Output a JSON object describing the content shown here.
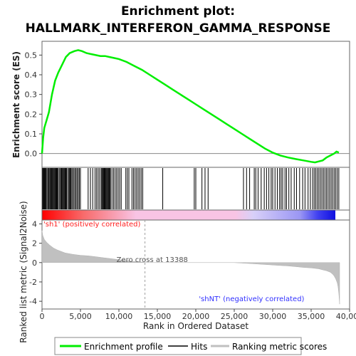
{
  "chart_data": {
    "type": "line",
    "title_line1": "Enrichment plot:",
    "title_line2": "HALLMARK_INTERFERON_GAMMA_RESPONSE",
    "ylabel_top": "Enrichment score (ES)",
    "ylabel_bottom": "Ranked list metric (Signal2Noise)",
    "xlabel": "Rank in Ordered Dataset",
    "xlim": [
      0,
      40000
    ],
    "x_ticks": [
      "0",
      "5,000",
      "10,000",
      "15,000",
      "20,000",
      "25,000",
      "30,000",
      "35,000",
      "40,000"
    ],
    "x_tick_values": [
      0,
      5000,
      10000,
      15000,
      20000,
      25000,
      30000,
      35000,
      40000
    ],
    "es_ylim": [
      -0.07,
      0.57
    ],
    "es_ticks": [
      "0.0",
      "0.1",
      "0.2",
      "0.3",
      "0.4",
      "0.5"
    ],
    "es_tick_values": [
      0.0,
      0.1,
      0.2,
      0.3,
      0.4,
      0.5
    ],
    "metric_ylim": [
      -4.8,
      4.4
    ],
    "metric_ticks": [
      "-4",
      "-2",
      "0",
      "2",
      "4"
    ],
    "metric_tick_values": [
      -4,
      -2,
      0,
      2,
      4
    ],
    "enrichment_profile": {
      "x": [
        0,
        150,
        300,
        600,
        900,
        1300,
        1700,
        2100,
        2600,
        3100,
        3600,
        4200,
        4700,
        5200,
        5800,
        6400,
        7000,
        7600,
        8200,
        8800,
        9400,
        10000,
        11000,
        12000,
        13000,
        14000,
        15000,
        16000,
        17000,
        18000,
        19000,
        20000,
        21000,
        22000,
        23000,
        24000,
        25000,
        26000,
        27000,
        28000,
        29000,
        30000,
        31000,
        32000,
        33000,
        34000,
        35000,
        35500,
        36000,
        36500,
        37000,
        37500,
        38000,
        38300,
        38600
      ],
      "y": [
        0.0,
        0.08,
        0.13,
        0.17,
        0.21,
        0.3,
        0.37,
        0.41,
        0.45,
        0.49,
        0.51,
        0.52,
        0.525,
        0.52,
        0.51,
        0.505,
        0.5,
        0.495,
        0.495,
        0.49,
        0.485,
        0.48,
        0.465,
        0.445,
        0.425,
        0.4,
        0.375,
        0.35,
        0.325,
        0.3,
        0.275,
        0.25,
        0.225,
        0.2,
        0.175,
        0.15,
        0.125,
        0.1,
        0.075,
        0.05,
        0.025,
        0.005,
        -0.01,
        -0.02,
        -0.028,
        -0.035,
        -0.042,
        -0.045,
        -0.04,
        -0.035,
        -0.02,
        -0.01,
        0.0,
        0.01,
        0.005
      ]
    },
    "zero_cross_label": "Zero cross at 13388",
    "zero_cross_x": 13388,
    "pos_label": "'sh1' (positively correlated)",
    "neg_label": "'shNT' (negatively correlated)",
    "hits": [
      80,
      160,
      240,
      320,
      420,
      520,
      640,
      760,
      880,
      1000,
      1100,
      1200,
      1300,
      1400,
      1500,
      1600,
      1700,
      1800,
      1900,
      2000,
      2100,
      2250,
      2400,
      2500,
      2600,
      2700,
      2800,
      2900,
      3000,
      3100,
      3200,
      3350,
      3500,
      3600,
      3700,
      3800,
      3950,
      4100,
      4250,
      4400,
      4550,
      4700,
      4850,
      5000,
      6000,
      6300,
      6600,
      6900,
      7100,
      7300,
      7500,
      7700,
      7800,
      7900,
      8000,
      8100,
      8200,
      8300,
      8400,
      8500,
      8600,
      8700,
      8800,
      8900,
      9100,
      9300,
      9500,
      9700,
      9900,
      10100,
      10300,
      10900,
      11100,
      11300,
      11700,
      11900,
      12100,
      12300,
      12500,
      12700,
      12900,
      13100,
      15700,
      19800,
      20000,
      20800,
      21200,
      21600,
      26200,
      26600,
      27000,
      27600,
      27800,
      28100,
      28500,
      28900,
      29200,
      29500,
      29800,
      30000,
      30300,
      30600,
      30900,
      31100,
      31300,
      31600,
      31800,
      32100,
      32400,
      32800,
      33100,
      33500,
      33900,
      34200,
      34600,
      34900,
      35200,
      35400,
      35600,
      35800,
      36000,
      36200,
      36400,
      36600,
      36800,
      37000,
      37200,
      37400,
      37600,
      37800,
      38000,
      38200,
      38400,
      38600
    ],
    "metric_curve": {
      "x": [
        0,
        100,
        300,
        600,
        1000,
        1500,
        2000,
        3000,
        4000,
        5000,
        6000,
        7000,
        8000,
        9000,
        10000,
        11000,
        12000,
        13000,
        13388,
        15000,
        20000,
        25000,
        26000,
        27000,
        28000,
        29000,
        30000,
        31000,
        32000,
        33000,
        34000,
        35000,
        35500,
        36000,
        36500,
        37000,
        37500,
        37800,
        38000,
        38200,
        38400,
        38500,
        38600,
        38700
      ],
      "y": [
        3.3,
        2.8,
        2.4,
        2.1,
        1.8,
        1.5,
        1.3,
        1.0,
        0.85,
        0.75,
        0.7,
        0.6,
        0.5,
        0.4,
        0.3,
        0.2,
        0.12,
        0.05,
        0.0,
        0.0,
        0.0,
        0.0,
        -0.05,
        -0.1,
        -0.15,
        -0.2,
        -0.25,
        -0.3,
        -0.35,
        -0.42,
        -0.5,
        -0.55,
        -0.6,
        -0.65,
        -0.75,
        -0.85,
        -1.0,
        -1.2,
        -1.4,
        -1.7,
        -2.1,
        -2.5,
        -3.2,
        -4.3
      ]
    },
    "legend": [
      "Enrichment profile",
      "Hits",
      "Ranking metric scores"
    ],
    "colors": {
      "profile": "#00ee00",
      "hits": "#000000",
      "metric_fill": "#c0c0c0",
      "pos_text": "#ff2020",
      "neg_text": "#3030ff",
      "zero_line": "#a0a0a0"
    }
  }
}
